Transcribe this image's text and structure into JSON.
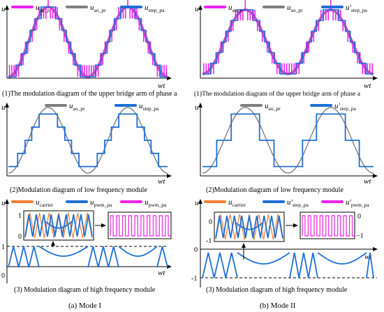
{
  "colors": {
    "magenta": "#ee22ee",
    "gray": "#7f7f7f",
    "blue": "#1f6fd6",
    "orange": "#f08030",
    "black": "#000000"
  },
  "axes": {
    "y": "u",
    "x": "wt"
  },
  "left": {
    "mode_label": "(a) Mode I",
    "p1": {
      "caption": "(1)The modulation diagram of the upper bridge arm of phase a",
      "legend": [
        {
          "base": "u",
          "sub": "ao_p"
        },
        {
          "base": "u",
          "sub": "ao_pr"
        },
        {
          "base": "u",
          "sub": "step_pa"
        }
      ]
    },
    "p2": {
      "caption": "(2)Modulation diagram of low frequency module",
      "legend": [
        {
          "base": "u",
          "sub": "ao_pr"
        },
        {
          "base": "u",
          "sub": "step_pa"
        }
      ]
    },
    "p3": {
      "caption": "(3) Modulation diagram of high frequency module",
      "legend": [
        {
          "base": "u",
          "sub": "carrier"
        },
        {
          "base": "u",
          "sub": "pwm_pa"
        },
        {
          "base": "u",
          "sub": "pwm_pa"
        }
      ],
      "inset_tick_top": "1",
      "inset_tick_bottom": "0",
      "tick_top": "1",
      "tick_bottom": "0"
    }
  },
  "right": {
    "mode_label": "(b) Mode II",
    "p1": {
      "caption": "(1)The modulation diagram of the upper bridge arm of phase a",
      "legend": [
        {
          "base": "u",
          "sub": "ao_p"
        },
        {
          "base": "u",
          "sub": "ao_pr"
        },
        {
          "base": "u'",
          "sub": "step_pa"
        }
      ]
    },
    "p2": {
      "caption": "(2)Modulation diagram of low frequency module",
      "legend": [
        {
          "base": "u",
          "sub": "ao_pr"
        },
        {
          "base": "u'",
          "sub": "step_pa"
        }
      ]
    },
    "p3": {
      "caption": "(3) Modulation diagram of high frequency module",
      "legend": [
        {
          "base": "u",
          "sub": "carrier"
        },
        {
          "base": "u'",
          "sub": "step_pa"
        },
        {
          "base": "u'",
          "sub": "pwm_pa"
        }
      ],
      "inset_tick_top": "0",
      "inset_tick_bottom": "-1",
      "inset_right_top": "0",
      "inset_right_bottom": "−1",
      "tick_top": "0",
      "tick_bottom": "-1"
    }
  }
}
